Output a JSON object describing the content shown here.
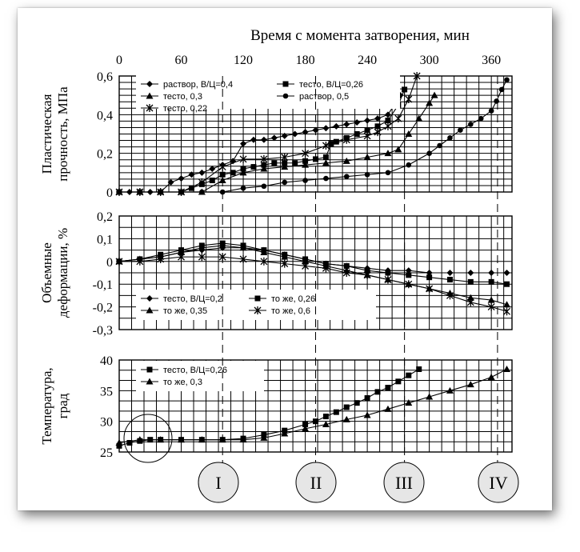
{
  "top_axis": {
    "title": "Время с момента затворения, мин",
    "ticks": [
      "0",
      "60",
      "120",
      "180",
      "240",
      "300",
      "360"
    ]
  },
  "chart_data": [
    {
      "type": "line",
      "ylabel_lines": [
        "Пластическая",
        "прочность, МПа"
      ],
      "y_ticks": [
        "0,6",
        "0,4",
        "0,2",
        "0"
      ],
      "ylim": [
        0,
        0.6
      ],
      "xlim": [
        0,
        380
      ],
      "grid": true,
      "legend": "top",
      "series": [
        {
          "name": "раствор, В/Ц=0,4",
          "marker": "diamond",
          "x": [
            0,
            10,
            20,
            30,
            40,
            50,
            60,
            70,
            80,
            90,
            100,
            110,
            120,
            130,
            140,
            150,
            160,
            170,
            180,
            190,
            200,
            210,
            220,
            230,
            240,
            250,
            260,
            266,
            272
          ],
          "y": [
            0,
            0,
            0,
            0,
            0,
            0.05,
            0.07,
            0.09,
            0.1,
            0.12,
            0.14,
            0.16,
            0.25,
            0.27,
            0.27,
            0.28,
            0.29,
            0.3,
            0.31,
            0.32,
            0.33,
            0.34,
            0.35,
            0.36,
            0.37,
            0.38,
            0.4,
            0.45,
            0.5
          ]
        },
        {
          "name": "тесто, В/Ц=0,26",
          "marker": "square",
          "x": [
            0,
            20,
            40,
            60,
            70,
            80,
            90,
            100,
            110,
            120,
            130,
            140,
            150,
            160,
            170,
            180,
            190,
            200,
            205,
            210,
            220,
            230,
            240,
            250,
            260,
            270,
            276
          ],
          "y": [
            0,
            0,
            0,
            0,
            0.02,
            0.04,
            0.06,
            0.09,
            0.1,
            0.12,
            0.13,
            0.14,
            0.15,
            0.15,
            0.15,
            0.16,
            0.17,
            0.18,
            0.25,
            0.26,
            0.28,
            0.3,
            0.32,
            0.34,
            0.37,
            0.45,
            0.53
          ]
        },
        {
          "name": "тесто, 0,3",
          "marker": "triangle",
          "x": [
            0,
            20,
            40,
            60,
            80,
            100,
            120,
            140,
            160,
            180,
            200,
            220,
            240,
            260,
            270,
            280,
            290,
            300,
            305
          ],
          "y": [
            0,
            0,
            0,
            0,
            0,
            0.06,
            0.1,
            0.12,
            0.13,
            0.14,
            0.15,
            0.16,
            0.18,
            0.2,
            0.22,
            0.3,
            0.38,
            0.46,
            0.5
          ]
        },
        {
          "name": "раствор, 0,5",
          "marker": "circle",
          "x": [
            0,
            20,
            40,
            60,
            80,
            100,
            120,
            140,
            160,
            180,
            200,
            220,
            240,
            260,
            280,
            300,
            310,
            320,
            330,
            340,
            350,
            360,
            365,
            370,
            375
          ],
          "y": [
            0,
            0,
            0,
            0,
            0,
            0,
            0.02,
            0.03,
            0.05,
            0.06,
            0.07,
            0.08,
            0.09,
            0.1,
            0.14,
            0.2,
            0.24,
            0.28,
            0.32,
            0.35,
            0.38,
            0.42,
            0.47,
            0.53,
            0.58
          ]
        },
        {
          "name": "тесто, 0,22",
          "marker": "star",
          "x": [
            0,
            20,
            40,
            60,
            80,
            100,
            120,
            140,
            160,
            180,
            200,
            220,
            240,
            250,
            260,
            270,
            280,
            288
          ],
          "y": [
            0,
            0,
            0,
            0,
            0.05,
            0.13,
            0.17,
            0.17,
            0.18,
            0.2,
            0.24,
            0.27,
            0.29,
            0.31,
            0.34,
            0.38,
            0.48,
            0.6
          ]
        }
      ]
    },
    {
      "type": "line",
      "ylabel_lines": [
        "Объемные",
        "деформации, %"
      ],
      "y_ticks": [
        "0,2",
        "0,1",
        "0",
        "-0,1",
        "-0,2",
        "-0,3"
      ],
      "ylim": [
        -0.3,
        0.2
      ],
      "xlim": [
        0,
        380
      ],
      "grid": true,
      "legend": "bottom",
      "series": [
        {
          "name": "тесто, В/Ц=0,2",
          "marker": "diamond",
          "x": [
            0,
            20,
            40,
            60,
            80,
            100,
            120,
            140,
            160,
            180,
            200,
            220,
            240,
            260,
            280,
            300,
            320,
            340,
            360,
            375
          ],
          "y": [
            0,
            0.01,
            0.02,
            0.04,
            0.05,
            0.06,
            0.06,
            0.05,
            0.03,
            0.01,
            -0.01,
            -0.02,
            -0.03,
            -0.04,
            -0.04,
            -0.05,
            -0.05,
            -0.05,
            -0.05,
            -0.05
          ]
        },
        {
          "name": "то же, 0,26",
          "marker": "square",
          "x": [
            0,
            20,
            40,
            60,
            80,
            100,
            120,
            140,
            160,
            180,
            200,
            220,
            240,
            260,
            280,
            300,
            320,
            340,
            360,
            375
          ],
          "y": [
            0,
            0.01,
            0.03,
            0.05,
            0.07,
            0.08,
            0.07,
            0.05,
            0.03,
            0.01,
            -0.01,
            -0.02,
            -0.04,
            -0.05,
            -0.06,
            -0.07,
            -0.08,
            -0.09,
            -0.09,
            -0.1
          ]
        },
        {
          "name": "то же, 0,35",
          "marker": "triangle",
          "x": [
            0,
            20,
            40,
            60,
            80,
            100,
            120,
            140,
            160,
            180,
            200,
            220,
            240,
            260,
            280,
            300,
            320,
            340,
            360,
            375
          ],
          "y": [
            0,
            0.01,
            0.02,
            0.04,
            0.06,
            0.07,
            0.06,
            0.04,
            0.02,
            0,
            -0.02,
            -0.04,
            -0.06,
            -0.08,
            -0.1,
            -0.12,
            -0.14,
            -0.16,
            -0.17,
            -0.19
          ]
        },
        {
          "name": "то же, 0,6",
          "marker": "star",
          "x": [
            0,
            20,
            40,
            60,
            80,
            100,
            120,
            140,
            160,
            180,
            200,
            220,
            240,
            260,
            280,
            300,
            320,
            340,
            360,
            375
          ],
          "y": [
            0,
            0,
            0.01,
            0.02,
            0.02,
            0.02,
            0.01,
            0,
            -0.01,
            -0.02,
            -0.03,
            -0.05,
            -0.06,
            -0.08,
            -0.1,
            -0.12,
            -0.15,
            -0.18,
            -0.2,
            -0.22
          ]
        }
      ]
    },
    {
      "type": "line",
      "ylabel_lines": [
        "Температура,",
        "град"
      ],
      "y_ticks": [
        "40",
        "35",
        "30",
        "25"
      ],
      "ylim": [
        25,
        40
      ],
      "xlim": [
        0,
        380
      ],
      "grid": true,
      "legend": "top-left",
      "series": [
        {
          "name": "тесто, В/Ц=0,26",
          "marker": "square",
          "x": [
            0,
            10,
            20,
            30,
            40,
            60,
            80,
            100,
            120,
            140,
            160,
            180,
            190,
            200,
            210,
            220,
            230,
            240,
            250,
            260,
            270,
            280,
            290
          ],
          "y": [
            26,
            26.5,
            26.8,
            27,
            27,
            27,
            27,
            27,
            27.2,
            27.8,
            28.5,
            29.5,
            30,
            30.8,
            31.5,
            32.3,
            33,
            33.8,
            34.8,
            35.5,
            36.5,
            37.5,
            38.5
          ]
        },
        {
          "name": "то же, 0,3",
          "marker": "triangle",
          "x": [
            0,
            20,
            40,
            60,
            80,
            100,
            120,
            140,
            160,
            180,
            200,
            220,
            240,
            260,
            280,
            300,
            320,
            340,
            360,
            375
          ],
          "y": [
            26.5,
            27,
            27,
            27,
            27,
            27,
            27,
            27.3,
            28,
            28.8,
            29.5,
            30.3,
            31,
            32,
            33,
            34,
            35,
            36,
            37.2,
            38.5
          ]
        }
      ]
    }
  ],
  "stage_markers": [
    "I",
    "II",
    "III",
    "IV"
  ],
  "colors": {
    "ink": "#000000",
    "page": "#ffffff",
    "stage_circle": "#e6e6e6"
  }
}
